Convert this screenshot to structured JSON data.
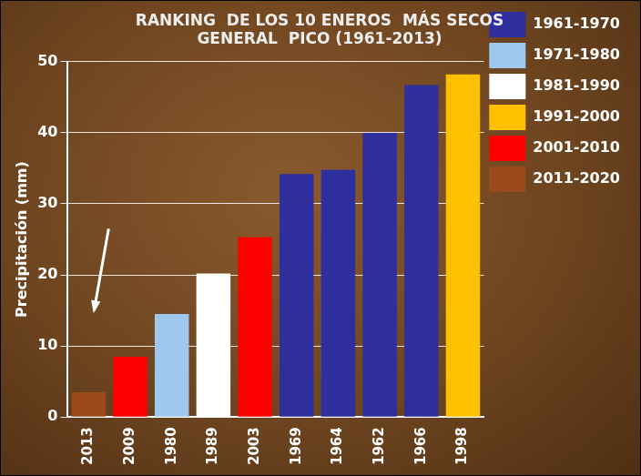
{
  "chart_data": {
    "type": "bar",
    "title": [
      "RANKING  DE LOS 10 ENEROS  MÁS SECOS",
      "GENERAL  PICO (1961-2013)"
    ],
    "y_label": "Precipitación (mm)",
    "categories": [
      "2013",
      "2009",
      "1980",
      "1989",
      "2003",
      "1969",
      "1964",
      "1962",
      "1966",
      "1998"
    ],
    "series": [
      {
        "name": "1961-1970",
        "color": "#2e2f9c",
        "values": [
          null,
          null,
          null,
          null,
          null,
          34.2,
          34.8,
          40.0,
          46.7,
          null
        ]
      },
      {
        "name": "1971-1980",
        "color": "#9fc8ef",
        "values": [
          null,
          null,
          14.5,
          null,
          null,
          null,
          null,
          null,
          null,
          null
        ]
      },
      {
        "name": "1981-1990",
        "color": "#ffffff",
        "values": [
          null,
          null,
          null,
          20.2,
          null,
          null,
          null,
          null,
          null,
          null
        ]
      },
      {
        "name": "1991-2000",
        "color": "#ffc000",
        "values": [
          null,
          null,
          null,
          null,
          null,
          null,
          null,
          null,
          null,
          48.2
        ]
      },
      {
        "name": "2001-2010",
        "color": "#ff0000",
        "values": [
          null,
          8.5,
          null,
          null,
          25.3,
          null,
          null,
          null,
          null,
          null
        ]
      },
      {
        "name": "2011-2020",
        "color": "#9a4a1c",
        "values": [
          3.5,
          null,
          null,
          null,
          null,
          null,
          null,
          null,
          null,
          null
        ]
      }
    ],
    "ylim": [
      0,
      50
    ],
    "yticks": [
      0,
      10,
      20,
      30,
      40,
      50
    ],
    "grid": true,
    "legend": "right"
  }
}
